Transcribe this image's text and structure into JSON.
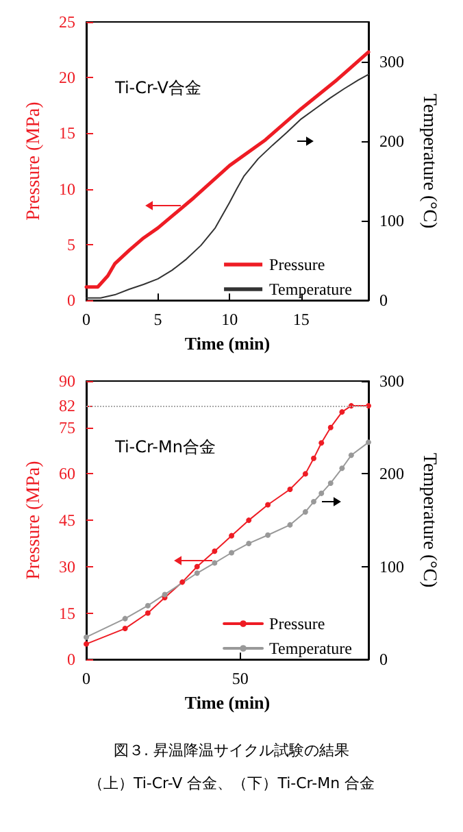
{
  "chart_data": [
    {
      "type": "line",
      "xlabel": "Time (min)",
      "ylabel": "Pressure (MPa)",
      "y2label": "Temperature (°C)",
      "annotations": [
        "Ti-Cr-V合金"
      ],
      "xlim": [
        0,
        19.7
      ],
      "xticks": [
        0,
        5,
        10,
        15
      ],
      "ylim": [
        0,
        25
      ],
      "yticks": [
        0,
        5,
        10,
        15,
        20,
        25
      ],
      "y2lim": [
        0,
        350
      ],
      "y2ticks": [
        0,
        100,
        200,
        300
      ],
      "legend": "bottom right",
      "grid": false,
      "marker": "none",
      "series": [
        {
          "name": "Pressure",
          "color": "#ee1c24",
          "x": [
            0,
            0.8,
            1.5,
            2,
            3,
            4,
            5,
            7.5,
            10,
            12.5,
            15,
            17.5,
            19.7
          ],
          "values": [
            1.2,
            1.2,
            2.2,
            3.3,
            4.5,
            5.6,
            6.5,
            9.2,
            12.1,
            14.4,
            17.2,
            19.8,
            22.3
          ]
        },
        {
          "name": "Temperature",
          "color": "#333333",
          "axis": "y2",
          "x": [
            0,
            1,
            2,
            3,
            4,
            5,
            6,
            7,
            8,
            9,
            10,
            10.5,
            11,
            12,
            13,
            14,
            15,
            16,
            17,
            18,
            19,
            19.7
          ],
          "values": [
            3,
            3,
            7,
            14,
            20,
            27,
            38,
            52,
            69,
            91,
            123,
            140,
            156,
            178,
            195,
            211,
            228,
            241,
            254,
            266,
            277,
            284
          ]
        }
      ]
    },
    {
      "type": "line",
      "xlabel": "Time (min)",
      "ylabel": "Pressure (MPa)",
      "y2label": "Temperature (°C)",
      "annotations": [
        "Ti-Cr-Mn合金",
        "図３. 昇温降温サイクル試験の結果",
        "（上）Ti-Cr-V 合金、（下）Ti-Cr-Mn 合金"
      ],
      "xlim": [
        0,
        91.7
      ],
      "xticks": [
        0,
        50
      ],
      "ylim": [
        0,
        90
      ],
      "yticks": [
        0,
        15,
        30,
        45,
        60,
        75,
        82,
        90
      ],
      "y2lim": [
        0,
        300
      ],
      "y2ticks": [
        0,
        100,
        200,
        300
      ],
      "legend": "bottom right",
      "grid": false,
      "marker": "circle",
      "ref_lines": [
        {
          "axis": "y",
          "value": 82,
          "color": "#aaaaaa",
          "line_style": "dotted"
        }
      ],
      "series": [
        {
          "name": "Pressure",
          "color": "#ee1c24",
          "x": [
            0,
            12.6,
            20,
            25.5,
            31.2,
            36,
            41.7,
            47.2,
            52.8,
            59,
            66.2,
            71.2,
            73.9,
            76.4,
            79.4,
            83.1,
            86.1,
            91.7
          ],
          "values": [
            5,
            10,
            15,
            20,
            25,
            30,
            35,
            40,
            45,
            50,
            55,
            60,
            65,
            70,
            75,
            80,
            82,
            82
          ]
        },
        {
          "name": "Temperature",
          "color": "#999999",
          "axis": "y2",
          "x": [
            0,
            12.6,
            20,
            25.5,
            36,
            41.7,
            47.2,
            52.8,
            59,
            66.2,
            71.2,
            73.9,
            76.4,
            79.4,
            83.1,
            86.1,
            91.7
          ],
          "values": [
            24,
            44,
            58,
            70,
            93,
            104,
            115,
            125,
            134,
            145,
            159,
            170,
            179,
            190,
            206,
            220,
            234
          ]
        }
      ]
    }
  ]
}
